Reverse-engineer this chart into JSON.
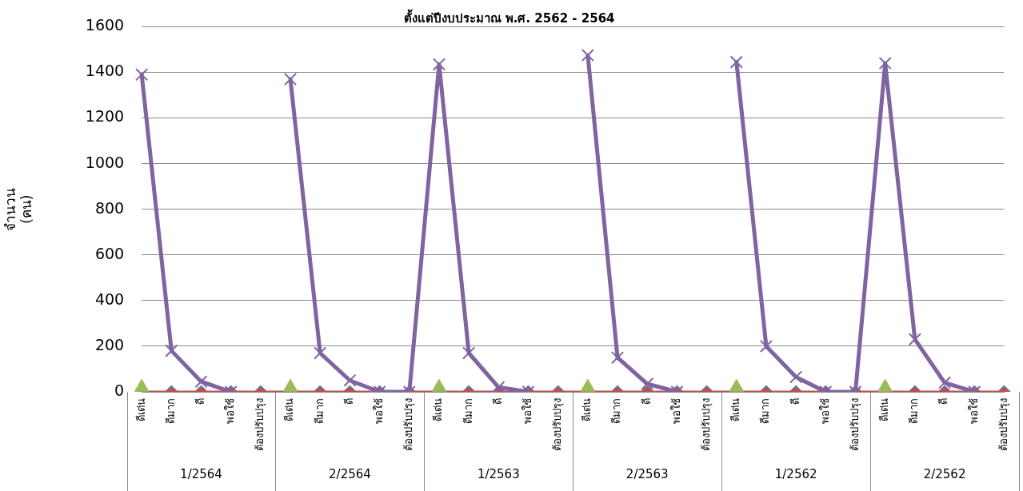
{
  "chart_data": {
    "type": "line",
    "title": "ตั้งแต่ปีงบประมาณ พ.ศ. 2562 - 2564",
    "ylabel": "จำนวน\n(คน)",
    "categories": [
      "ดีเด่น",
      "ดีมาก",
      "ดี",
      "พอใช้",
      "ต้องปรับปรุง",
      "ดีเด่น",
      "ดีมาก",
      "ดี",
      "พอใช้",
      "ต้องปรับปรุง",
      "ดีเด่น",
      "ดีมาก",
      "ดี",
      "พอใช้",
      "ต้องปรับปรุง",
      "ดีเด่น",
      "ดีมาก",
      "ดี",
      "พอใช้",
      "ต้องปรับปรุง",
      "ดีเด่น",
      "ดีมาก",
      "ดี",
      "พอใช้",
      "ต้องปรับปรุง",
      "ดีเด่น",
      "ดีมาก",
      "ดี",
      "พอใช้",
      "ต้องปรับปรุง"
    ],
    "annotations": [
      "1/2564",
      "2/2564",
      "1/2563",
      "2/2563",
      "1/2562",
      "2/2562"
    ],
    "series": [
      {
        "type": "scatter",
        "marker": "diamond",
        "color": "#4f81bd",
        "values": [
          null,
          0,
          0,
          0,
          0,
          null,
          0,
          0,
          0,
          0,
          null,
          0,
          0,
          0,
          0,
          null,
          0,
          0,
          0,
          0,
          null,
          0,
          0,
          0,
          0,
          null,
          0,
          0,
          0,
          0
        ]
      },
      {
        "type": "line",
        "marker": "circle",
        "color": "#c0504d",
        "values": [
          0,
          0,
          0,
          0,
          0,
          0,
          0,
          0,
          0,
          0,
          0,
          0,
          0,
          0,
          0,
          0,
          0,
          0,
          0,
          0,
          0,
          0,
          0,
          0,
          0,
          0,
          0,
          0,
          0,
          0
        ]
      },
      {
        "type": "scatter",
        "marker": "triangle",
        "color": "#9bbb59",
        "values": [
          20,
          null,
          null,
          null,
          null,
          20,
          null,
          null,
          null,
          null,
          20,
          null,
          null,
          null,
          null,
          20,
          null,
          null,
          null,
          null,
          20,
          null,
          null,
          null,
          null,
          20,
          null,
          null,
          null,
          null
        ]
      },
      {
        "type": "line",
        "marker": "cross",
        "color": "#8064a2",
        "values": [
          1390,
          180,
          45,
          0,
          null,
          1370,
          170,
          50,
          0,
          0,
          1435,
          170,
          20,
          0,
          null,
          1475,
          150,
          35,
          0,
          null,
          1445,
          200,
          65,
          0,
          0,
          1440,
          230,
          40,
          0,
          null
        ]
      }
    ],
    "ylim": [
      0,
      1600
    ],
    "yticks": [
      0,
      200,
      400,
      600,
      800,
      1000,
      1200,
      1400,
      1600
    ],
    "grid": "y",
    "legend": false
  }
}
